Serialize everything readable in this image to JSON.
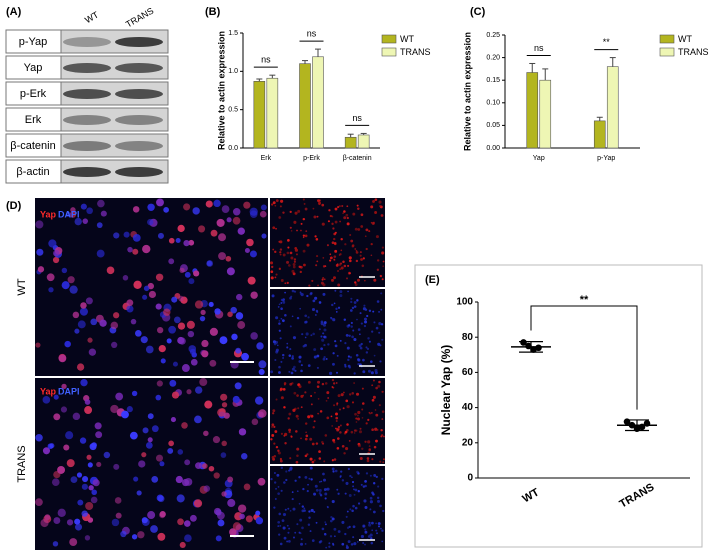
{
  "blot": {
    "label": "(A)",
    "columns": [
      "WT",
      "TRANS"
    ],
    "rows": [
      "p-Yap",
      "Yap",
      "p-Erk",
      "Erk",
      "β-catenin",
      "β-actin"
    ]
  },
  "microscopy": {
    "label": "(D)",
    "rows": [
      "WT",
      "TRANS"
    ],
    "stain_labels": [
      "Yap",
      "DAPI"
    ]
  },
  "chart_data": [
    {
      "type": "bar",
      "label": "(B)",
      "y_label": "Relative to actin expression",
      "categories": [
        "Erk",
        "p-Erk",
        "β-catenin"
      ],
      "series": [
        {
          "name": "WT",
          "color": "#b3b51f",
          "values": [
            0.87,
            1.1,
            0.14
          ],
          "errors": [
            0.03,
            0.04,
            0.04
          ]
        },
        {
          "name": "TRANS",
          "color": "#eef6b4",
          "values": [
            0.91,
            1.19,
            0.17
          ],
          "errors": [
            0.04,
            0.1,
            0.02
          ]
        }
      ],
      "significance": [
        "ns",
        "ns",
        "ns"
      ],
      "ylim": [
        0,
        1.5
      ],
      "yticks": [
        {
          "value": 0,
          "label": "0.0"
        },
        {
          "value": 0.5,
          "label": "0.5"
        },
        {
          "value": 1,
          "label": "1.0"
        },
        {
          "value": 1.5,
          "label": "1.5"
        }
      ],
      "legend": "upper right"
    },
    {
      "type": "bar",
      "label": "(C)",
      "y_label": "Relative to actin expression",
      "categories": [
        "Yap",
        "p-Yap"
      ],
      "series": [
        {
          "name": "WT",
          "color": "#b3b51f",
          "values": [
            0.167,
            0.06
          ],
          "errors": [
            0.02,
            0.008
          ]
        },
        {
          "name": "TRANS",
          "color": "#eef6b4",
          "values": [
            0.15,
            0.18
          ],
          "errors": [
            0.025,
            0.02
          ]
        }
      ],
      "significance": [
        "ns",
        "**"
      ],
      "ylim": [
        0,
        0.25
      ],
      "yticks": [
        {
          "value": 0,
          "label": "0.00"
        },
        {
          "value": 0.05,
          "label": "0.05"
        },
        {
          "value": 0.1,
          "label": "0.10"
        },
        {
          "value": 0.15,
          "label": "0.15"
        },
        {
          "value": 0.2,
          "label": "0.20"
        },
        {
          "value": 0.25,
          "label": "0.25"
        }
      ],
      "legend": "upper right"
    },
    {
      "type": "dot",
      "label": "(E)",
      "y_label": "Nuclear  Yap (%)",
      "categories": [
        "WT",
        "TRANS"
      ],
      "points": [
        [
          77,
          75,
          73,
          74
        ],
        [
          32,
          30,
          28,
          29,
          31
        ]
      ],
      "means": [
        74.5,
        30
      ],
      "sd": [
        3,
        3
      ],
      "significance": "**",
      "ylim": [
        0,
        100
      ],
      "yticks": [
        0,
        20,
        40,
        60,
        80,
        100
      ]
    }
  ]
}
